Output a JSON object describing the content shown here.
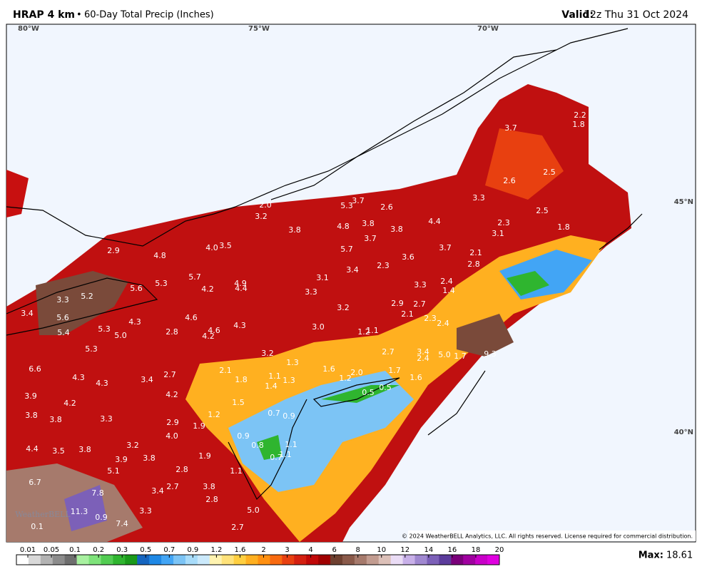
{
  "header": {
    "model": "HRAP 4 km",
    "separator": "•",
    "product": "60-Day Total Precip (Inches)",
    "valid_label": "Valid:",
    "valid_time": "12z Thu 31 Oct 2024"
  },
  "map": {
    "longitudes": [
      "80°W",
      "75°W",
      "70°W"
    ],
    "latitudes": [
      "45°N",
      "40°N"
    ],
    "watermark": "WeatherBELL",
    "copyright": "© 2024 WeatherBELL Analytics, LLC. All rights reserved. License required for commercial distribution.",
    "values": [
      "2.2",
      "1.8",
      "3.7",
      "2.5",
      "2.6",
      "3.3",
      "2.5",
      "2.3",
      "1.8",
      "3.1",
      "4.4",
      "3.7",
      "2.1",
      "2.8",
      "5.3",
      "3.7",
      "2.6",
      "2.0",
      "3.2",
      "3.8",
      "4.8",
      "3.8",
      "3.8",
      "3.7",
      "5.7",
      "3.6",
      "2.3",
      "3.4",
      "2.9",
      "4.8",
      "4.0",
      "3.5",
      "5.7",
      "5.3",
      "5.6",
      "5.2",
      "3.3",
      "4.2",
      "4.9",
      "4.4",
      "3.1",
      "3.3",
      "3.3",
      "2.4",
      "1.4",
      "3.4",
      "5.6",
      "5.3",
      "4.3",
      "4.6",
      "4.6",
      "4.3",
      "4.2",
      "5.4",
      "5.0",
      "2.8",
      "3.2",
      "2.9",
      "2.7",
      "2.1",
      "2.3",
      "2.4",
      "3.0",
      "1.2",
      "1.1",
      "5.3",
      "2.7",
      "3.4",
      "2.4",
      "5.0",
      "1.7",
      "9.3",
      "3.2",
      "1.3",
      "1.6",
      "6.6",
      "4.3",
      "4.3",
      "3.4",
      "2.7",
      "2.1",
      "1.8",
      "1.1",
      "1.3",
      "1.4",
      "1.2",
      "2.0",
      "1.7",
      "1.6",
      "0.5",
      "0.5",
      "3.9",
      "4.2",
      "4.2",
      "1.5",
      "3.8",
      "3.8",
      "3.3",
      "1.2",
      "0.7",
      "0.9",
      "2.9",
      "1.9",
      "4.0",
      "0.9",
      "0.8",
      "1.1",
      "4.4",
      "3.5",
      "3.8",
      "3.2",
      "3.9",
      "3.8",
      "1.9",
      "0.7",
      "1.1",
      "5.1",
      "2.8",
      "1.1",
      "6.7",
      "7.8",
      "3.4",
      "2.7",
      "3.8",
      "2.8",
      "11.3",
      "0.9",
      "3.3",
      "5.0",
      "7.4",
      "0.1",
      "2.7"
    ]
  },
  "legend": {
    "ticks": [
      0.01,
      0.05,
      0.1,
      0.2,
      0.3,
      0.5,
      0.7,
      0.9,
      1.2,
      1.6,
      2,
      3,
      4,
      6,
      8,
      10,
      12,
      14,
      16,
      18,
      20
    ],
    "colors": [
      "#ffffff",
      "#d9d9d9",
      "#b3b3b3",
      "#8c8c8c",
      "#6e6e6e",
      "#a8f0a0",
      "#7ee27a",
      "#52cc52",
      "#2fb52f",
      "#1a9a1a",
      "#1565c0",
      "#1e88e5",
      "#42a5f5",
      "#7cc4f5",
      "#a8dcfa",
      "#cbe9fb",
      "#fff3b0",
      "#ffe27a",
      "#ffcf40",
      "#ffb020",
      "#ff9010",
      "#f86a10",
      "#e84010",
      "#d42010",
      "#c00808",
      "#a00000",
      "#6e4030",
      "#8a5a4a",
      "#a67a6c",
      "#c29c90",
      "#dcc0b8",
      "#eadcf5",
      "#c8b0e8",
      "#a088d0",
      "#7c60b8",
      "#5c3c9c",
      "#7a007a",
      "#a000a0",
      "#c800c8",
      "#e000e0"
    ],
    "max_label": "Max:",
    "max_value": "18.61"
  }
}
